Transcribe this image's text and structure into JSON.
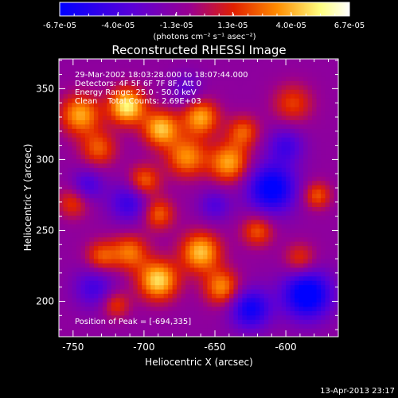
{
  "chart_data": {
    "type": "heatmap",
    "title": "Reconstructed RHESSI Image",
    "xlabel": "Heliocentric X (arcsec)",
    "ylabel": "Heliocentric Y (arcsec)",
    "xlim": [
      -760,
      -563
    ],
    "ylim": [
      175,
      371
    ],
    "x_ticks": [
      "-750",
      "-700",
      "-650",
      "-600"
    ],
    "y_ticks": [
      "200",
      "250",
      "300",
      "350"
    ],
    "x_tick_values": [
      -750,
      -700,
      -650,
      -600
    ],
    "y_tick_values": [
      200,
      250,
      300,
      350
    ],
    "colorbar": {
      "ticks": [
        "-6.7e-05",
        "-4.0e-05",
        "-1.3e-05",
        "1.3e-05",
        "4.0e-05",
        "6.7e-05"
      ],
      "tick_values": [
        -6.7e-05,
        -4e-05,
        -1.3e-05,
        1.3e-05,
        4e-05,
        6.7e-05
      ],
      "unit_label": "(photons cm⁻² s⁻¹ asec⁻²)",
      "range": [
        -6.7e-05,
        6.7e-05
      ],
      "colors": [
        "#0000ff",
        "#5a00d8",
        "#9a0090",
        "#e02000",
        "#ff8c00",
        "#ffff80",
        "#ffffff"
      ]
    },
    "annotations": [
      "29-Mar-2002 18:03:28.000 to 18:07:44.000",
      "Detectors: 4F 5F 6F 7F 8F, Att 0",
      "Energy Range: 25.0 - 50.0 keV",
      "Clean    Total Counts: 2.69E+03"
    ],
    "peak_label": "Position of Peak = [-694,335]",
    "peak": {
      "x": -694,
      "y": 335
    },
    "sources": [
      {
        "x": -712,
        "y": 338,
        "amp": 6.5e-05,
        "sigma": 9
      },
      {
        "x": -745,
        "y": 332,
        "amp": 5e-05,
        "sigma": 10
      },
      {
        "x": -732,
        "y": 308,
        "amp": 3.5e-05,
        "sigma": 9
      },
      {
        "x": -688,
        "y": 322,
        "amp": 5.5e-05,
        "sigma": 9
      },
      {
        "x": -660,
        "y": 330,
        "amp": 5e-05,
        "sigma": 9
      },
      {
        "x": -670,
        "y": 302,
        "amp": 4.5e-05,
        "sigma": 10
      },
      {
        "x": -640,
        "y": 298,
        "amp": 5e-05,
        "sigma": 10
      },
      {
        "x": -700,
        "y": 285,
        "amp": 4e-05,
        "sigma": 8
      },
      {
        "x": -690,
        "y": 262,
        "amp": 3.8e-05,
        "sigma": 8
      },
      {
        "x": -710,
        "y": 235,
        "amp": 4e-05,
        "sigma": 9
      },
      {
        "x": -690,
        "y": 215,
        "amp": 6e-05,
        "sigma": 10
      },
      {
        "x": -660,
        "y": 235,
        "amp": 5.5e-05,
        "sigma": 10
      },
      {
        "x": -645,
        "y": 210,
        "amp": 4.5e-05,
        "sigma": 9
      },
      {
        "x": -730,
        "y": 232,
        "amp": 3.5e-05,
        "sigma": 8
      },
      {
        "x": -630,
        "y": 320,
        "amp": 3.5e-05,
        "sigma": 8
      },
      {
        "x": -595,
        "y": 340,
        "amp": 3e-05,
        "sigma": 10
      },
      {
        "x": -578,
        "y": 275,
        "amp": 3.5e-05,
        "sigma": 7
      },
      {
        "x": -590,
        "y": 230,
        "amp": 3e-05,
        "sigma": 8
      },
      {
        "x": -750,
        "y": 270,
        "amp": 3e-05,
        "sigma": 8
      },
      {
        "x": -720,
        "y": 198,
        "amp": 3e-05,
        "sigma": 7
      },
      {
        "x": -620,
        "y": 250,
        "amp": 3.5e-05,
        "sigma": 8
      },
      {
        "x": -610,
        "y": 280,
        "amp": -6e-05,
        "sigma": 12
      },
      {
        "x": -585,
        "y": 205,
        "amp": -6.5e-05,
        "sigma": 12
      },
      {
        "x": -625,
        "y": 195,
        "amp": -5e-05,
        "sigma": 10
      },
      {
        "x": -710,
        "y": 270,
        "amp": -3.5e-05,
        "sigma": 10
      },
      {
        "x": -735,
        "y": 210,
        "amp": -3e-05,
        "sigma": 10
      },
      {
        "x": -740,
        "y": 282,
        "amp": -3e-05,
        "sigma": 8
      },
      {
        "x": -650,
        "y": 268,
        "amp": -2.5e-05,
        "sigma": 8
      },
      {
        "x": -600,
        "y": 310,
        "amp": -3e-05,
        "sigma": 9
      },
      {
        "x": -670,
        "y": 350,
        "amp": -2e-05,
        "sigma": 8
      }
    ]
  },
  "footer": {
    "timestamp": "13-Apr-2013 23:17"
  }
}
